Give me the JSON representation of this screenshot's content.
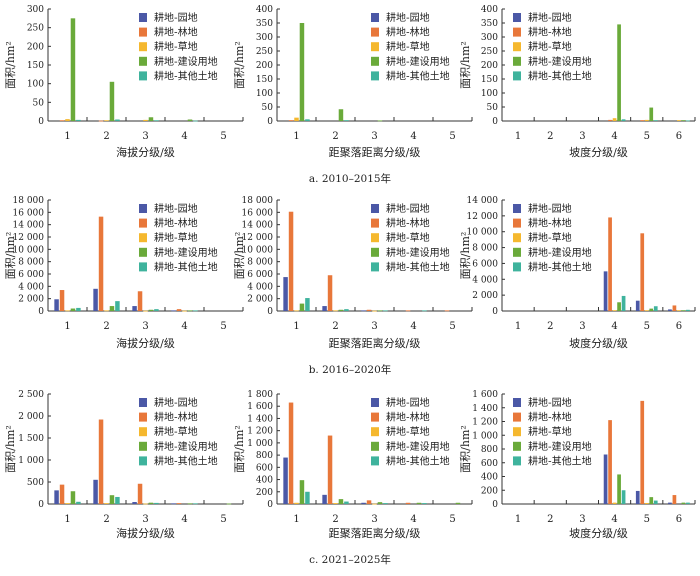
{
  "chart_data": {
    "type": "bar",
    "legend": [
      "耕地-园地",
      "耕地-林地",
      "耕地-草地",
      "耕地-建设用地",
      "耕地-其他土地"
    ],
    "colors": [
      "#4b58a6",
      "#e8773a",
      "#f5b82e",
      "#6aaa3a",
      "#3fb39d"
    ],
    "legend_placement": "top-right",
    "grid": false,
    "rows": [
      {
        "caption": "a.  2010–2015年",
        "panels": [
          {
            "xlabel": "海拔分级/级",
            "ylabel": "面积/hm²",
            "categories": [
              "1",
              "2",
              "3",
              "4",
              "5"
            ],
            "ylim": [
              0,
              300
            ],
            "tick_values": [
              0,
              50,
              100,
              150,
              200,
              250,
              300
            ],
            "tick_labels": [
              "0",
              "50",
              "100",
              "150",
              "200",
              "250",
              "300"
            ],
            "series": [
              [
                0,
                0,
                0,
                0,
                0
              ],
              [
                2,
                1,
                0,
                0,
                0
              ],
              [
                5,
                2,
                3,
                0,
                0
              ],
              [
                275,
                105,
                10,
                4,
                0
              ],
              [
                3,
                4,
                2,
                1,
                0
              ]
            ]
          },
          {
            "xlabel": "距聚落距离分级/级",
            "ylabel": "面积/hm²",
            "categories": [
              "1",
              "2",
              "3",
              "4",
              "5"
            ],
            "ylim": [
              0,
              400
            ],
            "tick_values": [
              0,
              50,
              100,
              150,
              200,
              250,
              300,
              350,
              400
            ],
            "tick_labels": [
              "0",
              "50",
              "100",
              "150",
              "200",
              "250",
              "300",
              "350",
              "400"
            ],
            "series": [
              [
                0,
                0,
                0,
                0,
                0
              ],
              [
                3,
                0,
                0,
                0,
                0
              ],
              [
                12,
                0,
                0,
                0,
                0
              ],
              [
                350,
                42,
                2,
                0,
                0
              ],
              [
                6,
                3,
                0,
                0,
                0
              ]
            ]
          },
          {
            "xlabel": "坡度分级/级",
            "ylabel": "面积/hm²",
            "categories": [
              "1",
              "2",
              "3",
              "4",
              "5",
              "6"
            ],
            "ylim": [
              0,
              400
            ],
            "tick_values": [
              0,
              50,
              100,
              150,
              200,
              250,
              300,
              350,
              400
            ],
            "tick_labels": [
              "0",
              "50",
              "100",
              "150",
              "200",
              "250",
              "300",
              "350",
              "400"
            ],
            "series": [
              [
                0,
                0,
                0,
                0,
                0,
                0
              ],
              [
                0,
                0,
                0,
                4,
                3,
                0
              ],
              [
                0,
                0,
                0,
                10,
                4,
                3
              ],
              [
                0,
                0,
                0,
                345,
                48,
                3
              ],
              [
                0,
                0,
                0,
                6,
                3,
                2
              ]
            ]
          }
        ]
      },
      {
        "caption": "b.  2016–2020年",
        "panels": [
          {
            "xlabel": "海拔分级/级",
            "ylabel": "面积/hm²",
            "categories": [
              "1",
              "2",
              "3",
              "4",
              "5"
            ],
            "ylim": [
              0,
              18000
            ],
            "tick_values": [
              0,
              2000,
              4000,
              6000,
              8000,
              10000,
              12000,
              14000,
              16000,
              18000
            ],
            "tick_labels": [
              "0",
              "2 000",
              "4 000",
              "6 000",
              "8 000",
              "10 000",
              "12 000",
              "14 000",
              "16 000",
              "18 000"
            ],
            "series": [
              [
                1900,
                3600,
                800,
                100,
                0
              ],
              [
                3400,
                15300,
                3200,
                300,
                0
              ],
              [
                100,
                100,
                50,
                50,
                0
              ],
              [
                400,
                800,
                200,
                100,
                0
              ],
              [
                500,
                1600,
                300,
                100,
                0
              ]
            ]
          },
          {
            "xlabel": "距聚落距离分级/级",
            "ylabel": "面积/hm²",
            "categories": [
              "1",
              "2",
              "3",
              "4",
              "5"
            ],
            "ylim": [
              0,
              18000
            ],
            "tick_values": [
              0,
              2000,
              4000,
              6000,
              8000,
              10000,
              12000,
              14000,
              16000,
              18000
            ],
            "tick_labels": [
              "0",
              "2 000",
              "4 000",
              "6 000",
              "8 000",
              "10 000",
              "12 000",
              "14 000",
              "16 000",
              "18 000"
            ],
            "series": [
              [
                5500,
                800,
                100,
                0,
                0
              ],
              [
                16100,
                5800,
                200,
                100,
                100
              ],
              [
                100,
                100,
                50,
                0,
                0
              ],
              [
                1200,
                200,
                100,
                0,
                0
              ],
              [
                2100,
                300,
                100,
                100,
                0
              ]
            ]
          },
          {
            "xlabel": "坡度分级/级",
            "ylabel": "面积/hm²",
            "categories": [
              "1",
              "2",
              "3",
              "4",
              "5",
              "6"
            ],
            "ylim": [
              0,
              14000
            ],
            "tick_values": [
              0,
              2000,
              4000,
              6000,
              8000,
              10000,
              12000,
              14000
            ],
            "tick_labels": [
              "0",
              "2 000",
              "4 000",
              "6 000",
              "8 000",
              "10 000",
              "12 000",
              "14 000"
            ],
            "series": [
              [
                0,
                0,
                0,
                5000,
                1300,
                200
              ],
              [
                0,
                0,
                0,
                11800,
                9800,
                700
              ],
              [
                0,
                0,
                0,
                100,
                100,
                100
              ],
              [
                0,
                0,
                0,
                1100,
                300,
                100
              ],
              [
                0,
                0,
                0,
                1900,
                600,
                150
              ]
            ]
          }
        ]
      },
      {
        "caption": "c.  2021–2025年",
        "panels": [
          {
            "xlabel": "海拔分级/级",
            "ylabel": "面积/hm²",
            "categories": [
              "1",
              "2",
              "3",
              "4",
              "5"
            ],
            "ylim": [
              0,
              2500
            ],
            "tick_values": [
              0,
              500,
              1000,
              1500,
              2000,
              2500
            ],
            "tick_labels": [
              "0",
              "500",
              "1 000",
              "1 500",
              "2 000",
              "2 500"
            ],
            "series": [
              [
                310,
                550,
                45,
                15,
                0
              ],
              [
                440,
                1920,
                460,
                20,
                0
              ],
              [
                20,
                20,
                10,
                0,
                0
              ],
              [
                290,
                200,
                30,
                15,
                10
              ],
              [
                50,
                160,
                25,
                15,
                0
              ]
            ]
          },
          {
            "xlabel": "距聚落距离分级/级",
            "ylabel": "面积/hm²",
            "categories": [
              "1",
              "2",
              "3",
              "4",
              "5"
            ],
            "ylim": [
              0,
              1800
            ],
            "tick_values": [
              0,
              200,
              400,
              600,
              800,
              1000,
              1200,
              1400,
              1600,
              1800
            ],
            "tick_labels": [
              "0",
              "200",
              "400",
              "600",
              "800",
              "1 000",
              "1 200",
              "1 400",
              "1 600",
              "1 800"
            ],
            "series": [
              [
                760,
                150,
                20,
                0,
                0
              ],
              [
                1660,
                1120,
                60,
                20,
                0
              ],
              [
                20,
                15,
                5,
                0,
                0
              ],
              [
                390,
                80,
                30,
                20,
                20
              ],
              [
                200,
                40,
                15,
                15,
                0
              ]
            ]
          },
          {
            "xlabel": "坡度分级/级",
            "ylabel": "面积/hm²",
            "categories": [
              "1",
              "2",
              "3",
              "4",
              "5",
              "6"
            ],
            "ylim": [
              0,
              1600
            ],
            "tick_values": [
              0,
              200,
              400,
              600,
              800,
              1000,
              1200,
              1400,
              1600
            ],
            "tick_labels": [
              "0",
              "200",
              "400",
              "600",
              "800",
              "1 000",
              "1 200",
              "1 400",
              "1 600"
            ],
            "series": [
              [
                0,
                0,
                0,
                720,
                190,
                20
              ],
              [
                0,
                0,
                0,
                1220,
                1500,
                130
              ],
              [
                0,
                0,
                0,
                20,
                15,
                0
              ],
              [
                0,
                0,
                0,
                430,
                100,
                20
              ],
              [
                0,
                0,
                0,
                200,
                50,
                20
              ]
            ]
          }
        ]
      }
    ]
  }
}
